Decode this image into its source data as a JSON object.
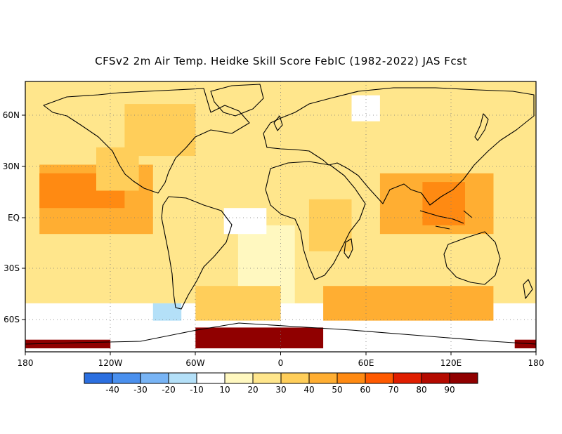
{
  "title": "CFSv2 2m Air Temp. Heidke Skill Score FebIC (1982-2022) JAS Fcst",
  "map": {
    "lat_labels": [
      "60N",
      "30N",
      "EQ",
      "30S",
      "60S"
    ],
    "lon_labels": [
      "180",
      "120W",
      "60W",
      "0",
      "60E",
      "120E",
      "180"
    ]
  },
  "colorbar": {
    "labels": [
      "-40",
      "-30",
      "-20",
      "-10",
      "10",
      "20",
      "30",
      "40",
      "50",
      "60",
      "70",
      "80",
      "90"
    ],
    "colors": [
      "#2b6fe0",
      "#4a90ee",
      "#78b4f5",
      "#b4e0f8",
      "#ffffff",
      "#fff8c0",
      "#ffe68c",
      "#ffce5a",
      "#ffae32",
      "#ff8a12",
      "#ff5a00",
      "#e01e00",
      "#b40a00",
      "#900000"
    ]
  },
  "chart_data": {
    "type": "heatmap",
    "title": "CFSv2 2m Air Temp. Heidke Skill Score FebIC (1982-2022) JAS Fcst",
    "x_range": [
      -180,
      180
    ],
    "y_range": [
      -78,
      78
    ],
    "x_ticks": [
      "180",
      "120W",
      "60W",
      "0",
      "60E",
      "120E",
      "180"
    ],
    "y_ticks": [
      "60N",
      "30N",
      "EQ",
      "30S",
      "60S"
    ],
    "color_levels": [
      -40,
      -30,
      -20,
      -10,
      10,
      20,
      30,
      40,
      50,
      60,
      70,
      80,
      90
    ],
    "regions": [
      {
        "lon": [
          -180,
          180
        ],
        "lat": [
          -50,
          78
        ],
        "value": 20
      },
      {
        "lon": [
          -170,
          -90
        ],
        "lat": [
          -10,
          30
        ],
        "value": 40
      },
      {
        "lon": [
          -170,
          -110
        ],
        "lat": [
          5,
          25
        ],
        "value": 50
      },
      {
        "lon": [
          -110,
          -60
        ],
        "lat": [
          35,
          65
        ],
        "value": 30
      },
      {
        "lon": [
          -130,
          -100
        ],
        "lat": [
          15,
          40
        ],
        "value": 30
      },
      {
        "lon": [
          -30,
          10
        ],
        "lat": [
          -50,
          -5
        ],
        "value": 10
      },
      {
        "lon": [
          20,
          50
        ],
        "lat": [
          -20,
          10
        ],
        "value": 30
      },
      {
        "lon": [
          70,
          150
        ],
        "lat": [
          -10,
          25
        ],
        "value": 40
      },
      {
        "lon": [
          100,
          130
        ],
        "lat": [
          -5,
          20
        ],
        "value": 50
      },
      {
        "lon": [
          110,
          150
        ],
        "lat": [
          -40,
          -15
        ],
        "value": 20
      },
      {
        "lon": [
          30,
          150
        ],
        "lat": [
          -60,
          -40
        ],
        "value": 40
      },
      {
        "lon": [
          -60,
          0
        ],
        "lat": [
          -60,
          -40
        ],
        "value": 30
      },
      {
        "lon": [
          0,
          60
        ],
        "lat": [
          35,
          75
        ],
        "value": 20
      },
      {
        "lon": [
          -40,
          -10
        ],
        "lat": [
          -10,
          5
        ],
        "value": -10
      },
      {
        "lon": [
          -90,
          -70
        ],
        "lat": [
          -60,
          -50
        ],
        "value": -20
      },
      {
        "lon": [
          50,
          70
        ],
        "lat": [
          55,
          70
        ],
        "value": -10
      },
      {
        "lon": [
          -60,
          30
        ],
        "lat": [
          -76,
          -64
        ],
        "value": 90
      },
      {
        "lon": [
          -180,
          -120
        ],
        "lat": [
          -76,
          -71
        ],
        "value": 90
      },
      {
        "lon": [
          165,
          180
        ],
        "lat": [
          -76,
          -71
        ],
        "value": 90
      }
    ]
  }
}
